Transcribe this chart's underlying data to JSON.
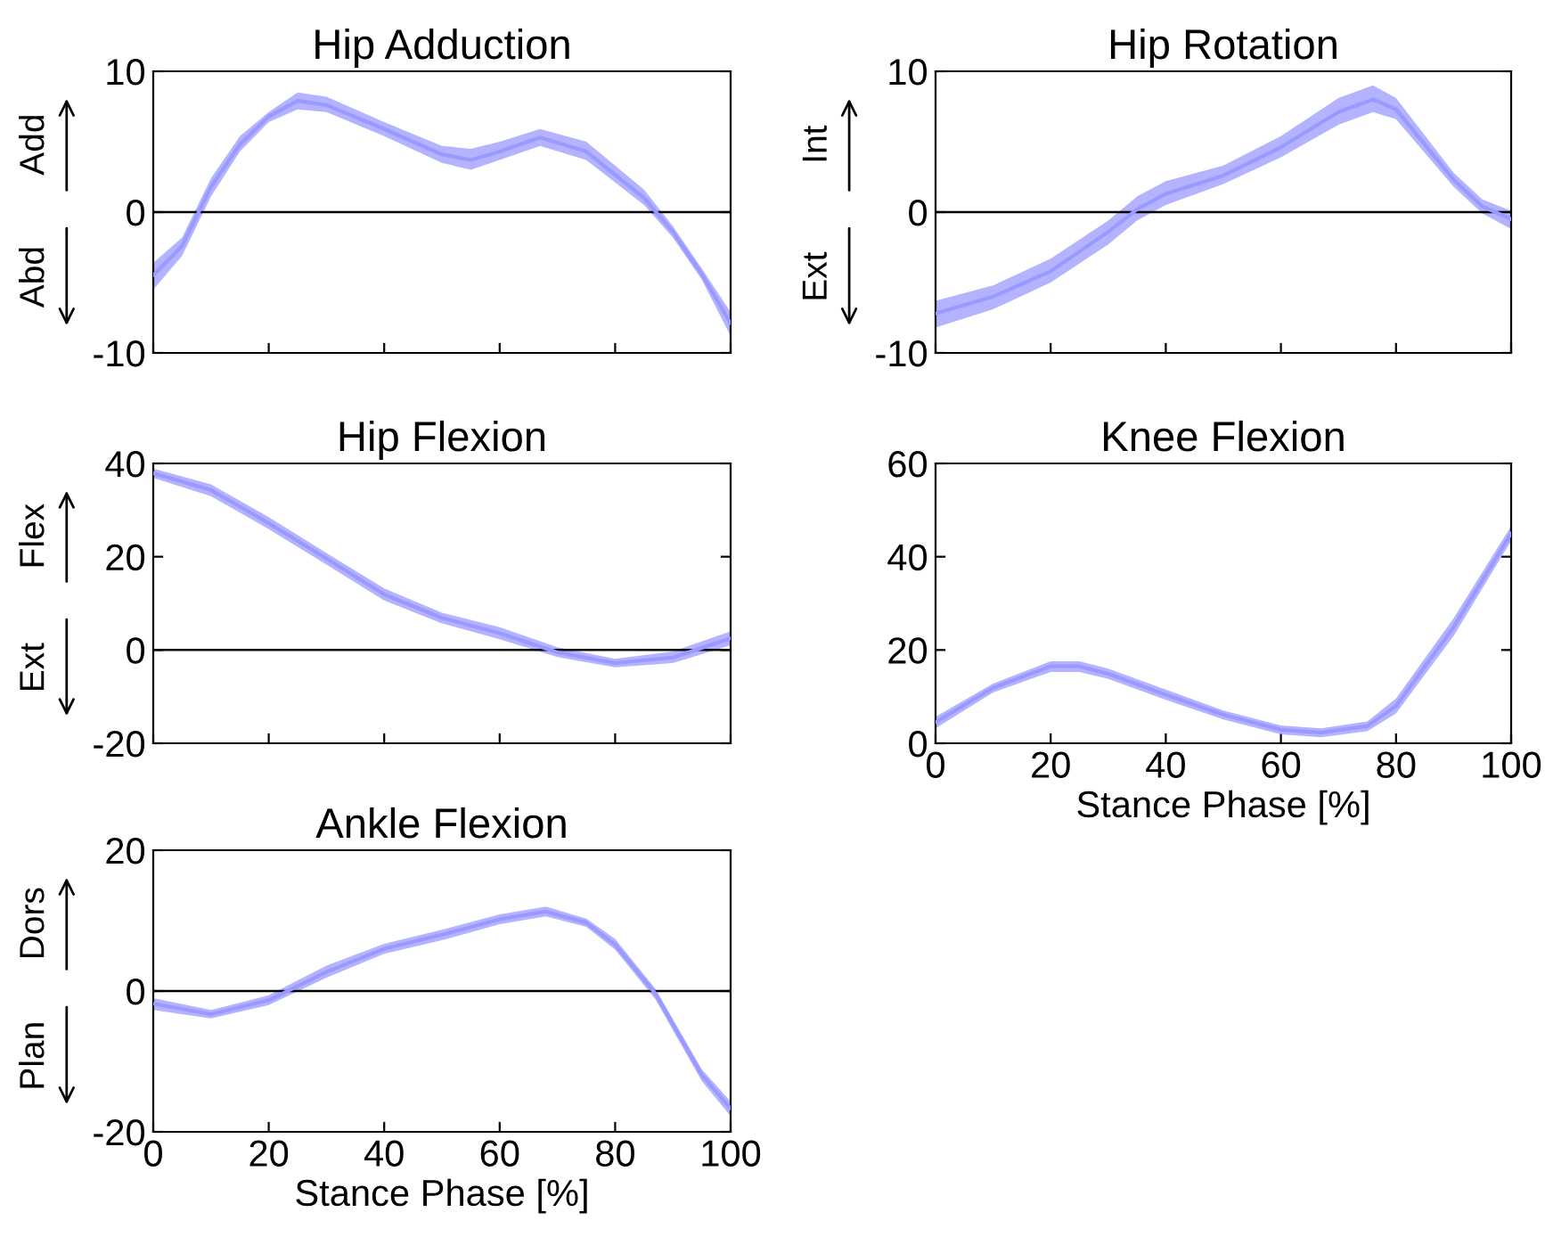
{
  "chart_data": [
    {
      "type": "line",
      "title": "Hip Adduction",
      "annotations": [
        "Add",
        "Abd"
      ],
      "xlim": [
        0,
        100
      ],
      "xticks": [
        {
          "value": 0,
          "label": null
        },
        {
          "value": 20,
          "label": null
        },
        {
          "value": 40,
          "label": null
        },
        {
          "value": 60,
          "label": null
        },
        {
          "value": 80,
          "label": null
        },
        {
          "value": 100,
          "label": null
        }
      ],
      "ylim": [
        -10,
        10
      ],
      "yticks": [
        -10,
        0,
        10
      ],
      "tick_labels": "y",
      "ref_lines": [
        {
          "axis": "y",
          "value": 0,
          "color": "#000000"
        }
      ],
      "series": [
        {
          "color": "#9999ff",
          "x": [
            0,
            5,
            10,
            15,
            20,
            25,
            30,
            40,
            50,
            55,
            60,
            67,
            75,
            85,
            90,
            95,
            100
          ],
          "values": [
            -4.5,
            -2.4,
            1.8,
            4.8,
            6.8,
            7.9,
            7.6,
            5.9,
            4.1,
            3.7,
            4.3,
            5.3,
            4.3,
            1.0,
            -1.4,
            -4.4,
            -7.9
          ],
          "lower": [
            -5.5,
            -3.1,
            1.1,
            4.3,
            6.4,
            7.3,
            7.1,
            5.4,
            3.5,
            3.0,
            3.7,
            4.7,
            3.7,
            0.5,
            -1.8,
            -4.8,
            -8.8
          ],
          "upper": [
            -3.6,
            -1.8,
            2.4,
            5.4,
            7.1,
            8.5,
            8.2,
            6.4,
            4.7,
            4.5,
            5.0,
            5.9,
            5.0,
            1.6,
            -1.0,
            -4.0,
            -7.1
          ]
        }
      ]
    },
    {
      "type": "line",
      "title": "Hip Rotation",
      "annotations": [
        "Int",
        "Ext"
      ],
      "xlim": [
        0,
        100
      ],
      "xticks": [
        {
          "value": 0,
          "label": null
        },
        {
          "value": 20,
          "label": null
        },
        {
          "value": 40,
          "label": null
        },
        {
          "value": 60,
          "label": null
        },
        {
          "value": 80,
          "label": null
        },
        {
          "value": 100,
          "label": null
        }
      ],
      "ylim": [
        -10,
        10
      ],
      "yticks": [
        -10,
        0,
        10
      ],
      "tick_labels": "y",
      "ref_lines": [
        {
          "axis": "y",
          "value": 0,
          "color": "#000000"
        }
      ],
      "series": [
        {
          "color": "#9999ff",
          "x": [
            0,
            10,
            20,
            30,
            35,
            40,
            50,
            60,
            70,
            76,
            80,
            90,
            95,
            100
          ],
          "values": [
            -7.2,
            -6.0,
            -4.2,
            -1.4,
            0.2,
            1.3,
            2.6,
            4.6,
            7.1,
            8.0,
            7.3,
            2.3,
            0.4,
            -0.5
          ],
          "lower": [
            -8.2,
            -6.9,
            -5.0,
            -2.3,
            -0.6,
            0.5,
            2.0,
            3.9,
            6.2,
            7.1,
            6.6,
            1.8,
            -0.1,
            -1.2
          ],
          "upper": [
            -6.3,
            -5.2,
            -3.3,
            -0.6,
            1.1,
            2.2,
            3.3,
            5.4,
            8.1,
            9.0,
            8.1,
            2.8,
            0.9,
            0.1
          ]
        }
      ]
    },
    {
      "type": "line",
      "title": "Hip Flexion",
      "annotations": [
        "Flex",
        "Ext"
      ],
      "xlim": [
        0,
        100
      ],
      "xticks": [
        {
          "value": 0,
          "label": null
        },
        {
          "value": 20,
          "label": null
        },
        {
          "value": 40,
          "label": null
        },
        {
          "value": 60,
          "label": null
        },
        {
          "value": 80,
          "label": null
        },
        {
          "value": 100,
          "label": null
        }
      ],
      "ylim": [
        -20,
        40
      ],
      "yticks": [
        -20,
        0,
        20,
        40
      ],
      "tick_labels": "y",
      "ref_lines": [
        {
          "axis": "y",
          "value": 0,
          "color": "#000000"
        }
      ],
      "series": [
        {
          "color": "#9999ff",
          "x": [
            0,
            10,
            20,
            30,
            40,
            50,
            60,
            70,
            80,
            90,
            100
          ],
          "values": [
            37.9,
            34.3,
            27.2,
            19.6,
            11.9,
            6.9,
            3.6,
            -0.5,
            -2.8,
            -1.6,
            2.5
          ],
          "lower": [
            36.9,
            33.0,
            25.9,
            18.3,
            10.6,
            5.7,
            2.3,
            -1.5,
            -3.7,
            -2.8,
            1.0
          ],
          "upper": [
            38.9,
            35.5,
            28.5,
            20.8,
            13.2,
            8.0,
            4.9,
            0.6,
            -1.9,
            -0.3,
            4.0
          ]
        }
      ]
    },
    {
      "type": "line",
      "title": "Knee Flexion",
      "xlabel": "Stance Phase [%]",
      "xlim": [
        0,
        100
      ],
      "xticks": [
        0,
        20,
        40,
        60,
        80,
        100
      ],
      "ylim": [
        0,
        60
      ],
      "yticks": [
        0,
        20,
        40,
        60
      ],
      "series": [
        {
          "color": "#9999ff",
          "x": [
            0,
            10,
            20,
            25,
            30,
            40,
            50,
            60,
            67,
            75,
            80,
            90,
            100
          ],
          "values": [
            4.5,
            11.9,
            16.5,
            16.5,
            14.9,
            10.4,
            6.1,
            2.9,
            2.3,
            3.7,
            8.0,
            24.9,
            45.0
          ],
          "lower": [
            3.2,
            10.9,
            15.3,
            15.3,
            13.8,
            9.3,
            5.1,
            1.9,
            1.3,
            2.6,
            6.4,
            23.0,
            43.4
          ],
          "upper": [
            5.7,
            12.8,
            17.6,
            17.6,
            16.0,
            11.5,
            7.0,
            3.8,
            3.2,
            4.7,
            9.6,
            26.8,
            46.6
          ]
        }
      ]
    },
    {
      "type": "line",
      "title": "Ankle Flexion",
      "xlabel": "Stance Phase [%]",
      "annotations": [
        "Dors",
        "Plan"
      ],
      "xlim": [
        0,
        100
      ],
      "xticks": [
        0,
        20,
        40,
        60,
        80,
        100
      ],
      "ylim": [
        -20,
        20
      ],
      "yticks": [
        -20,
        0,
        20
      ],
      "ref_lines": [
        {
          "axis": "y",
          "value": 0,
          "color": "#000000"
        }
      ],
      "series": [
        {
          "color": "#9999ff",
          "x": [
            0,
            10,
            20,
            30,
            40,
            50,
            60,
            68,
            75,
            80,
            87,
            95,
            100
          ],
          "values": [
            -1.8,
            -3.3,
            -1.3,
            2.7,
            6.0,
            8.0,
            10.2,
            11.3,
            9.7,
            6.6,
            -0.4,
            -11.9,
            -16.7
          ],
          "lower": [
            -2.7,
            -3.9,
            -2.0,
            1.9,
            5.3,
            7.2,
            9.5,
            10.6,
            9.1,
            5.9,
            -1.2,
            -12.8,
            -17.8
          ],
          "upper": [
            -1.0,
            -2.7,
            -0.6,
            3.6,
            6.7,
            8.7,
            10.9,
            12.0,
            10.3,
            7.4,
            0.3,
            -11.1,
            -15.7
          ]
        }
      ]
    }
  ]
}
